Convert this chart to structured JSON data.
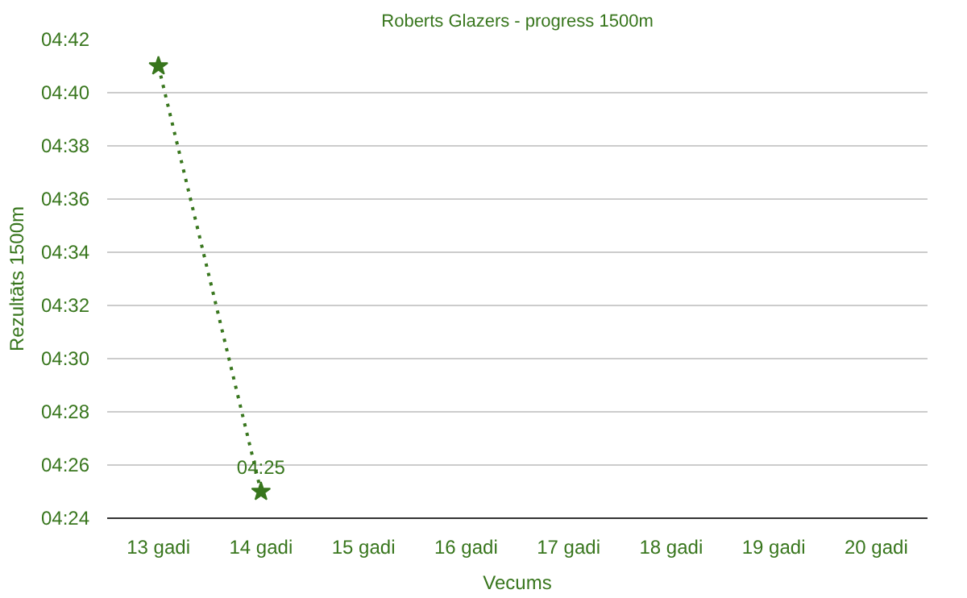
{
  "chart_data": {
    "type": "line",
    "title": "Roberts Glazers - progress 1500m",
    "xlabel": "Vecums",
    "ylabel": "Rezultāts 1500m",
    "categories": [
      "13 gadi",
      "14 gadi",
      "15 gadi",
      "16 gadi",
      "17 gadi",
      "18 gadi",
      "19 gadi",
      "20 gadi"
    ],
    "series": [
      {
        "color": "#38761d",
        "values": [
          281,
          265,
          null,
          null,
          null,
          null,
          null,
          null
        ],
        "value_labels": [
          null,
          "04:25",
          null,
          null,
          null,
          null,
          null,
          null
        ]
      }
    ],
    "ylim": [
      264,
      282
    ],
    "yticks": [
      {
        "value": 264,
        "label": "04:24"
      },
      {
        "value": 266,
        "label": "04:26"
      },
      {
        "value": 268,
        "label": "04:28"
      },
      {
        "value": 270,
        "label": "04:30"
      },
      {
        "value": 272,
        "label": "04:32"
      },
      {
        "value": 274,
        "label": "04:34"
      },
      {
        "value": 276,
        "label": "04:36"
      },
      {
        "value": 278,
        "label": "04:38"
      },
      {
        "value": 280,
        "label": "04:40"
      },
      {
        "value": 282,
        "label": "04:42"
      }
    ],
    "grid": "y",
    "marker": "star",
    "line_style": "dotted"
  }
}
